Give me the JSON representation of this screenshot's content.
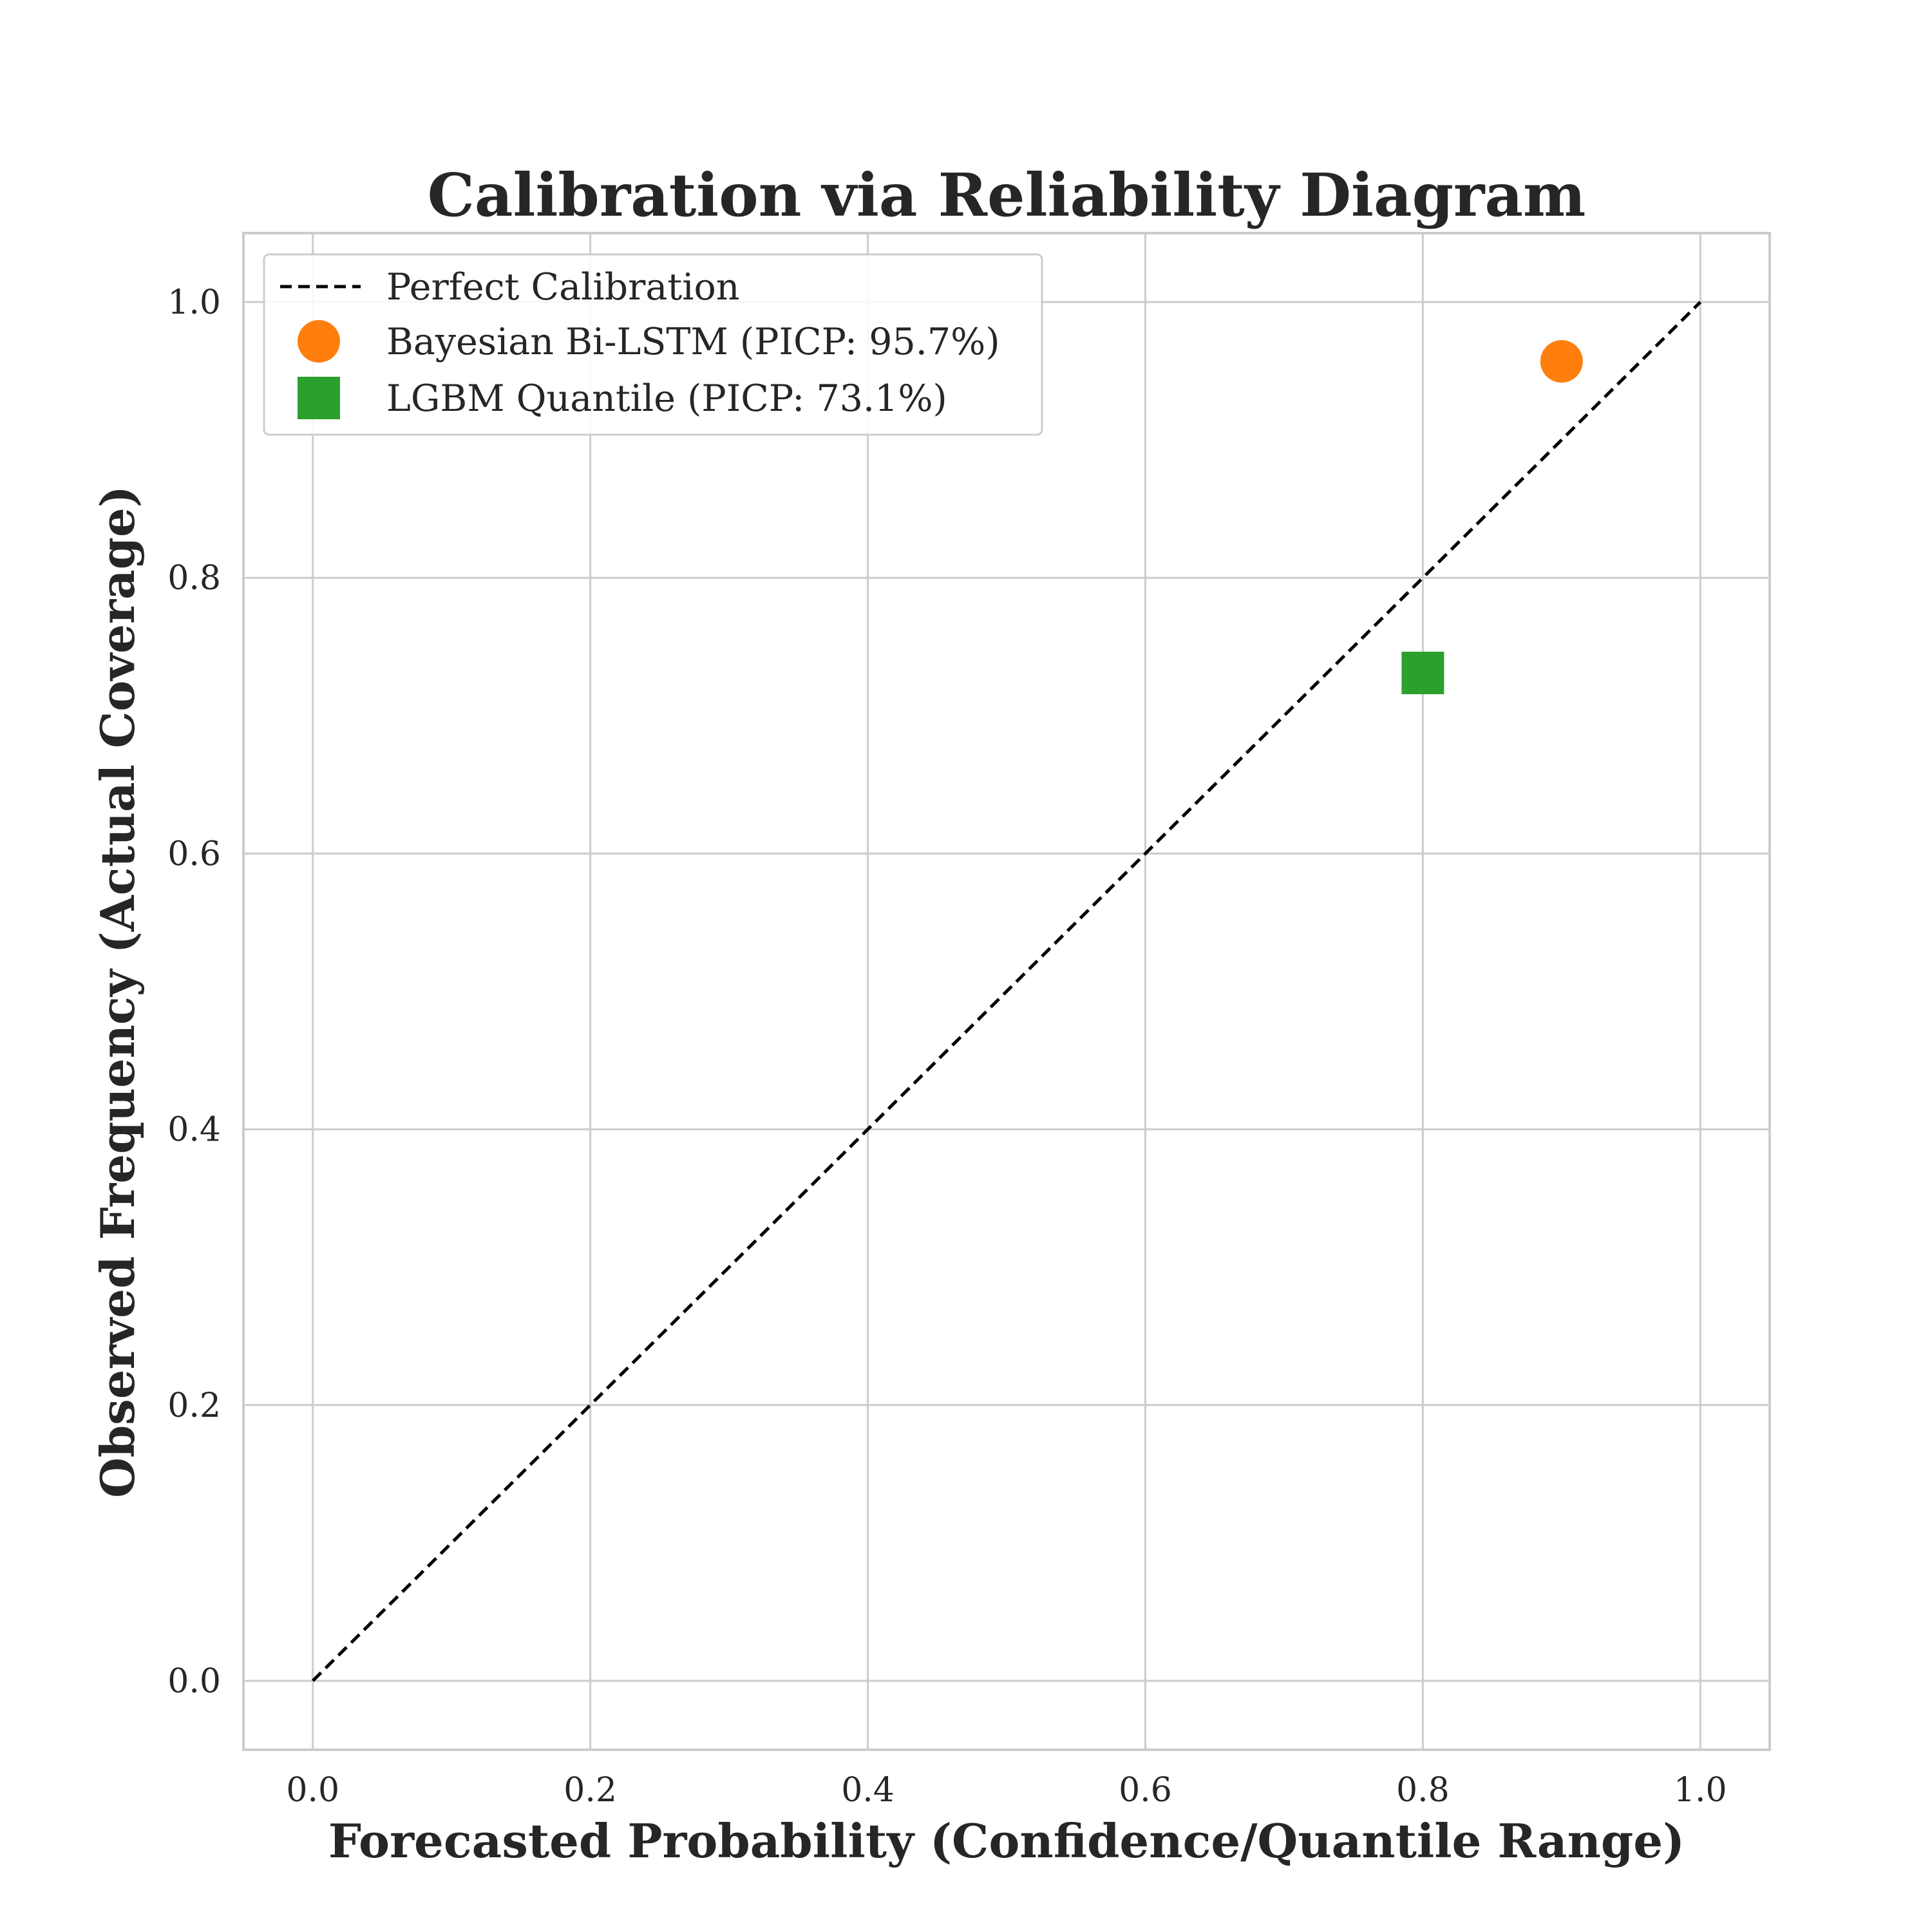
{
  "chart_data": {
    "type": "scatter",
    "title": "Calibration via Reliability Diagram",
    "xlabel": "Forecasted Probability (Confidence/Quantile Range)",
    "ylabel": "Observed Frequency (Actual Coverage)",
    "xlim": [
      -0.05,
      1.05
    ],
    "ylim": [
      -0.05,
      1.05
    ],
    "xticks": [
      0.0,
      0.2,
      0.4,
      0.6,
      0.8,
      1.0
    ],
    "yticks": [
      0.0,
      0.2,
      0.4,
      0.6,
      0.8,
      1.0
    ],
    "xtick_labels": [
      "0.0",
      "0.2",
      "0.4",
      "0.6",
      "0.8",
      "1.0"
    ],
    "ytick_labels": [
      "0.0",
      "0.2",
      "0.4",
      "0.6",
      "0.8",
      "1.0"
    ],
    "grid": true,
    "legend_position": "top-left",
    "reference_line": {
      "name": "Perfect Calibration",
      "x": [
        0.0,
        1.0
      ],
      "y": [
        0.0,
        1.0
      ],
      "color": "#000000",
      "style": "dashed"
    },
    "series": [
      {
        "name": "Bayesian Bi-LSTM (PICP: 95.7%)",
        "marker": "circle",
        "color": "#ff7f0e",
        "x": [
          0.9
        ],
        "y": [
          0.957
        ]
      },
      {
        "name": "LGBM Quantile (PICP: 73.1%)",
        "marker": "square",
        "color": "#2ca02c",
        "x": [
          0.8
        ],
        "y": [
          0.731
        ]
      }
    ]
  },
  "colors": {
    "grid": "#cccccc",
    "spine": "#cccccc",
    "text": "#262626"
  }
}
